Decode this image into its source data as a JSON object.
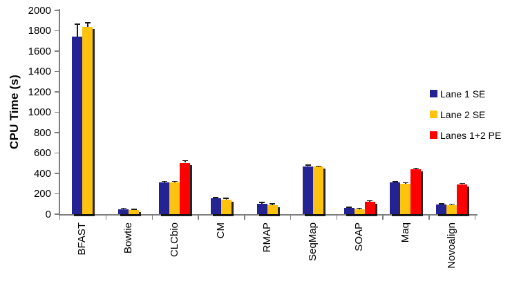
{
  "chart_data": {
    "type": "bar",
    "title": "",
    "xlabel": "",
    "ylabel": "CPU Time (s)",
    "ylim": [
      0,
      2000
    ],
    "yticks": [
      0,
      200,
      400,
      600,
      800,
      1000,
      1200,
      1400,
      1600,
      1800,
      2000
    ],
    "grid": false,
    "legend_position": "right",
    "categories": [
      "BFAST",
      "Bowtie",
      "CLCbio",
      "CM",
      "RMAP",
      "SeqMap",
      "SOAP",
      "Maq",
      "Novoalign"
    ],
    "series": [
      {
        "name": "Lane 1 SE",
        "color": "#232394",
        "values": [
          1740,
          45,
          310,
          155,
          100,
          470,
          60,
          310,
          95
        ],
        "errors": [
          125,
          10,
          10,
          8,
          12,
          8,
          8,
          6,
          6
        ]
      },
      {
        "name": "Lane 2 SE",
        "color": "#FFC20E",
        "values": [
          1840,
          40,
          310,
          145,
          90,
          465,
          50,
          300,
          90
        ],
        "errors": [
          35,
          8,
          10,
          8,
          10,
          6,
          6,
          6,
          6
        ]
      },
      {
        "name": "Lanes 1+2 PE",
        "color": "#FE0000",
        "values": [
          null,
          null,
          505,
          null,
          null,
          null,
          120,
          440,
          290
        ],
        "errors": [
          null,
          null,
          18,
          null,
          null,
          null,
          10,
          10,
          10
        ]
      }
    ],
    "axis_color": "#7f7f7f",
    "error_bar_color": "#1a1a1a"
  }
}
